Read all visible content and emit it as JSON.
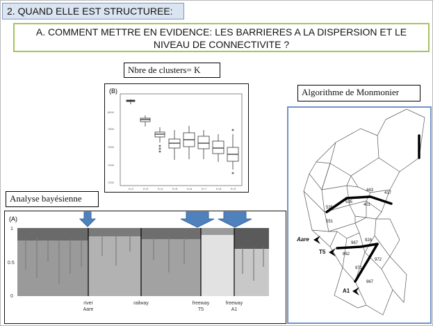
{
  "section_header": "2. QUAND ELLE EST STRUCTUREE:",
  "subtitle": {
    "line1": "A. COMMENT METTRE EN EVIDENCE: LES BARRIERES A LA DISPERSION ET LE",
    "line2": "NIVEAU DE CONNECTIVITE ?"
  },
  "labels": {
    "clusters": "Nbre de clusters= K",
    "monmonier": "Algorithme de Monmonier",
    "bayes": "Analyse bayésienne"
  },
  "panel_b": {
    "letter": "(B)",
    "y_ticks": [
      "8000",
      "7800",
      "7600",
      "7400",
      "7200"
    ],
    "x_ticks": [
      "K=2",
      "K=3",
      "K=4",
      "K=5",
      "K=6",
      "K=7",
      "K=8",
      "K=9"
    ]
  },
  "panel_a": {
    "letter": "(A)",
    "y_ticks": [
      "1",
      "0.5",
      "0"
    ],
    "barrier_labels": [
      {
        "line1": "river",
        "line2": "Aare"
      },
      {
        "line1": "railway",
        "line2": ""
      },
      {
        "line1": "freeway",
        "line2": "T5"
      },
      {
        "line1": "freeway",
        "line2": "A1"
      }
    ]
  },
  "monmonier": {
    "places": [
      "Aare",
      "T5",
      "A1"
    ],
    "edge_numbers": [
      "535",
      "443",
      "417",
      "535",
      "401",
      "551",
      "967",
      "928",
      "862",
      "972",
      "971",
      "967"
    ]
  },
  "colors": {
    "arrow": "#4f81bd",
    "section_bg": "#dbe5f1",
    "subtitle_border": "#a6c35e",
    "map_frame": "#6f93c4"
  }
}
